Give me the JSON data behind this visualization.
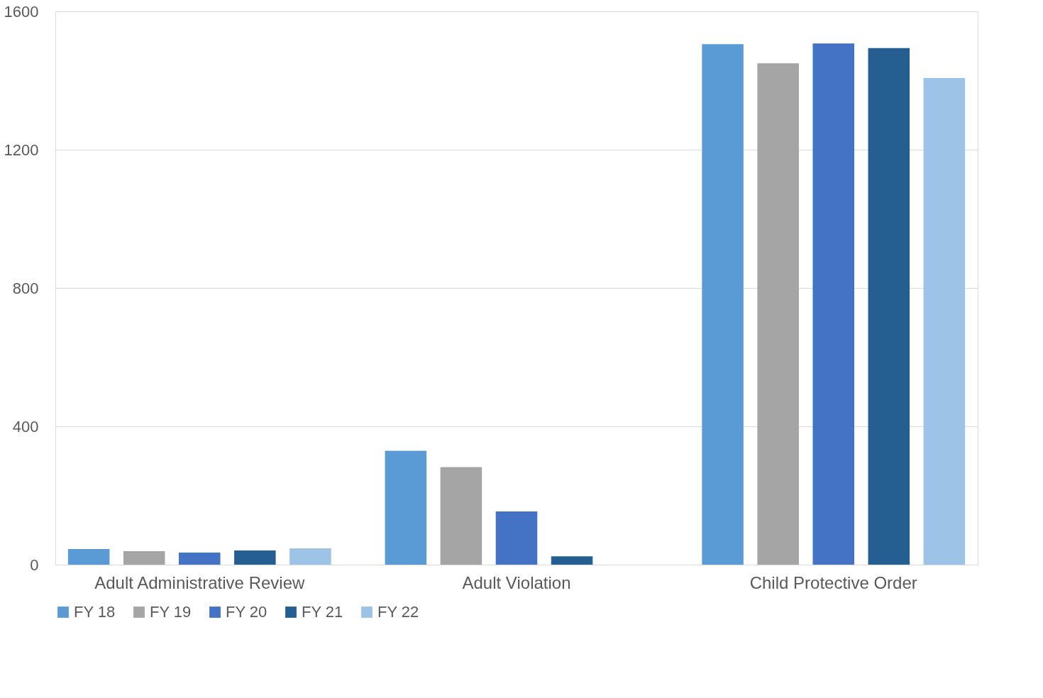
{
  "chart_data": {
    "type": "bar",
    "categories": [
      "Adult Administrative Review",
      "Adult Violation",
      "Child Protective Order"
    ],
    "series": [
      {
        "name": "FY 18",
        "color": "#5b9bd5",
        "values": [
          45,
          329,
          1505
        ]
      },
      {
        "name": "FY 19",
        "color": "#a5a5a5",
        "values": [
          39,
          282,
          1450
        ]
      },
      {
        "name": "FY 20",
        "color": "#4472c4",
        "values": [
          35,
          154,
          1507
        ]
      },
      {
        "name": "FY 21",
        "color": "#255e91",
        "values": [
          41,
          24,
          1494
        ]
      },
      {
        "name": "FY 22",
        "color": "#9dc3e6",
        "values": [
          47,
          null,
          1407
        ]
      }
    ],
    "ylim": [
      0,
      1600
    ],
    "yticks": [
      0,
      400,
      800,
      1200,
      1600
    ],
    "grid": "y",
    "legend": "bottom"
  }
}
